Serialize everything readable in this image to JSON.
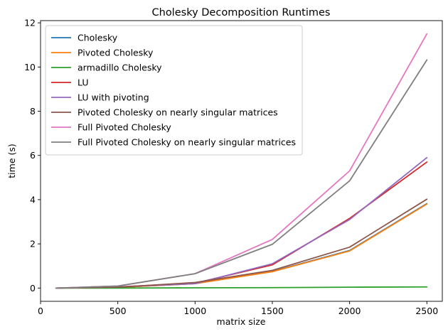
{
  "chart_data": {
    "type": "line",
    "title": "Cholesky Decomposition Runtimes",
    "xlabel": "matrix size",
    "ylabel": "time (s)",
    "x": [
      100,
      500,
      1000,
      1500,
      2000,
      2500
    ],
    "xlim": [
      0,
      2600
    ],
    "ylim": [
      -0.6,
      12.1
    ],
    "xticks": [
      0,
      500,
      1000,
      1500,
      2000,
      2500
    ],
    "yticks": [
      0,
      2,
      4,
      6,
      8,
      10,
      12
    ],
    "grid": false,
    "legend_position": "top-left",
    "series": [
      {
        "name": "Cholesky",
        "color": "#1f77b4",
        "values": [
          0.0,
          0.03,
          0.2,
          0.75,
          1.7,
          3.82
        ]
      },
      {
        "name": "Pivoted Cholesky",
        "color": "#ff7f0e",
        "values": [
          0.0,
          0.03,
          0.2,
          0.74,
          1.68,
          3.8
        ]
      },
      {
        "name": "armadillo Cholesky",
        "color": "#2ca02c",
        "values": [
          0.0,
          0.0,
          0.01,
          0.02,
          0.04,
          0.05
        ]
      },
      {
        "name": "LU",
        "color": "#d62728",
        "values": [
          0.0,
          0.05,
          0.22,
          1.05,
          3.15,
          5.7
        ]
      },
      {
        "name": "LU with pivoting",
        "color": "#9467bd",
        "values": [
          0.0,
          0.05,
          0.2,
          1.1,
          3.1,
          5.9
        ]
      },
      {
        "name": "Pivoted Cholesky on nearly singular matrices",
        "color": "#8c564b",
        "values": [
          0.0,
          0.04,
          0.25,
          0.8,
          1.85,
          4.02
        ]
      },
      {
        "name": "Full Pivoted Cholesky",
        "color": "#e377c2",
        "values": [
          0.0,
          0.09,
          0.65,
          2.2,
          5.3,
          11.5
        ]
      },
      {
        "name": "Full Pivoted Cholesky on nearly singular matrices",
        "color": "#7f7f7f",
        "values": [
          0.0,
          0.09,
          0.65,
          1.98,
          4.85,
          10.32
        ]
      }
    ]
  }
}
